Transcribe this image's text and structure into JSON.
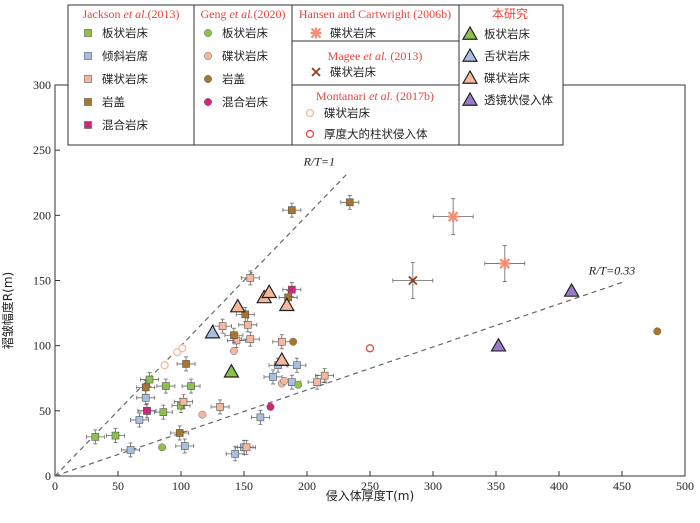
{
  "chart_data": {
    "type": "scatter",
    "xlabel": "侵入体厚度T(m)",
    "ylabel": "褶皱幅度R(m)",
    "xlim": [
      0,
      500
    ],
    "ylim": [
      0,
      300
    ],
    "xticks": [
      0,
      50,
      100,
      150,
      200,
      250,
      300,
      350,
      400,
      450,
      500
    ],
    "yticks": [
      0,
      50,
      100,
      150,
      200,
      250,
      300
    ],
    "grid": false,
    "legend_position": "top",
    "colors": {
      "sill_green": "#8bc34a",
      "inclined_blue": "#a9bfe0",
      "saucer_salmon": "#f6b89d",
      "laccolith_brown": "#a9742c",
      "hybrid_magenta": "#d6237a",
      "legend_red": "#e8443a"
    },
    "ratio_lines": [
      {
        "label": "R/T=1",
        "slope": 1,
        "x_end": 232
      },
      {
        "label": "R/T=0.33",
        "slope": 0.33,
        "x_end": 450
      }
    ],
    "legend_groups": [
      {
        "title": "Jackson et al.(2013)",
        "items": [
          "板状岩床",
          "倾斜岩席",
          "碟状岩床",
          "岩盖",
          "混合岩床"
        ]
      },
      {
        "title": "Geng et al.(2020)",
        "items": [
          "板状岩床",
          "碟状岩床",
          "岩盖",
          "混合岩床"
        ]
      },
      {
        "title": "Hansen and Cartwright (2006b)",
        "items": [
          "碟状岩床"
        ]
      },
      {
        "title": "Magee et al. (2013)",
        "items": [
          "碟状岩床"
        ]
      },
      {
        "title": "Montanari et al. (2017b)",
        "items": [
          "碟状岩床",
          "厚度大的柱状侵入体"
        ]
      },
      {
        "title": "本研究",
        "items": [
          "板状岩床",
          "舌状岩床",
          "碟状岩床",
          "透镜状侵入体"
        ]
      }
    ],
    "series": [
      {
        "name": "Jackson 板状岩床",
        "marker": "square",
        "color": "#8bc34a",
        "errorbars": true,
        "points": [
          [
            32,
            30
          ],
          [
            48,
            31
          ],
          [
            73,
            50
          ],
          [
            86,
            49
          ],
          [
            88,
            69
          ],
          [
            100,
            54
          ],
          [
            108,
            69
          ],
          [
            75,
            74
          ]
        ]
      },
      {
        "name": "Jackson 倾斜岩席",
        "marker": "square",
        "color": "#a9bfe0",
        "errorbars": true,
        "points": [
          [
            60,
            20
          ],
          [
            67,
            43
          ],
          [
            72,
            60
          ],
          [
            103,
            23
          ],
          [
            150,
            22
          ],
          [
            143,
            17
          ],
          [
            163,
            45
          ],
          [
            177,
            85
          ],
          [
            173,
            76
          ],
          [
            188,
            72
          ],
          [
            192,
            85
          ]
        ]
      },
      {
        "name": "Jackson 碟状岩床",
        "marker": "square",
        "color": "#f6b89d",
        "errorbars": true,
        "points": [
          [
            102,
            57
          ],
          [
            131,
            53
          ],
          [
            133,
            115
          ],
          [
            144,
            104
          ],
          [
            152,
            22
          ],
          [
            155,
            105
          ],
          [
            153,
            116
          ],
          [
            155,
            152
          ],
          [
            180,
            103
          ],
          [
            208,
            72
          ],
          [
            214,
            77
          ]
        ]
      },
      {
        "name": "Jackson 岩盖",
        "marker": "square",
        "color": "#a9742c",
        "errorbars": true,
        "points": [
          [
            72,
            68
          ],
          [
            99,
            33
          ],
          [
            104,
            86
          ],
          [
            142,
            108
          ],
          [
            151,
            124
          ],
          [
            185,
            137
          ],
          [
            188,
            204
          ],
          [
            234,
            210
          ]
        ]
      },
      {
        "name": "Jackson 混合岩床",
        "marker": "square",
        "color": "#d6237a",
        "errorbars": true,
        "points": [
          [
            73,
            50
          ],
          [
            188,
            143
          ]
        ]
      },
      {
        "name": "Geng 板状岩床",
        "marker": "circle",
        "color": "#8bc34a",
        "errorbars": false,
        "points": [
          [
            85,
            22
          ],
          [
            193,
            70
          ]
        ]
      },
      {
        "name": "Geng 碟状岩床",
        "marker": "circle",
        "color": "#f6b89d",
        "errorbars": false,
        "points": [
          [
            117,
            47
          ],
          [
            142,
            96
          ],
          [
            180,
            71
          ],
          [
            182,
            73
          ]
        ]
      },
      {
        "name": "Geng 岩盖",
        "marker": "circle",
        "color": "#a9742c",
        "errorbars": false,
        "points": [
          [
            189,
            103
          ],
          [
            478,
            111
          ]
        ]
      },
      {
        "name": "Geng 混合岩床",
        "marker": "circle",
        "color": "#d6237a",
        "errorbars": false,
        "points": [
          [
            171,
            53
          ]
        ]
      },
      {
        "name": "Hansen and Cartwright 碟状岩床",
        "marker": "asterisk",
        "color": "#f39074",
        "errorbars": true,
        "points": [
          [
            316,
            199
          ],
          [
            357,
            163
          ]
        ]
      },
      {
        "name": "Magee 碟状岩床",
        "marker": "x",
        "color": "#9b3a22",
        "errorbars": true,
        "points": [
          [
            284,
            150
          ]
        ]
      },
      {
        "name": "Montanari 碟状岩床",
        "marker": "open-circle",
        "color": "#f6b89d",
        "errorbars": false,
        "points": [
          [
            97,
            95
          ],
          [
            101,
            98
          ],
          [
            87,
            85
          ]
        ]
      },
      {
        "name": "Montanari 厚度大的柱状侵入体",
        "marker": "open-circle",
        "color": "#e8443a",
        "errorbars": false,
        "points": [
          [
            250,
            98
          ]
        ]
      },
      {
        "name": "本研究 板状岩床",
        "marker": "triangle",
        "color": "#8bc34a",
        "errorbars": false,
        "points": [
          [
            140,
            80
          ]
        ]
      },
      {
        "name": "本研究 舌状岩床",
        "marker": "triangle",
        "color": "#a9bfe0",
        "errorbars": false,
        "points": [
          [
            125,
            110
          ]
        ]
      },
      {
        "name": "本研究 碟状岩床",
        "marker": "triangle",
        "color": "#f6b89d",
        "errorbars": false,
        "points": [
          [
            145,
            130
          ],
          [
            166,
            137
          ],
          [
            170,
            141
          ],
          [
            180,
            89
          ],
          [
            184,
            131
          ]
        ]
      },
      {
        "name": "本研究 透镜状侵入体",
        "marker": "triangle",
        "color": "#9b7ac8",
        "errorbars": false,
        "points": [
          [
            352,
            100
          ],
          [
            410,
            142
          ]
        ]
      }
    ]
  }
}
